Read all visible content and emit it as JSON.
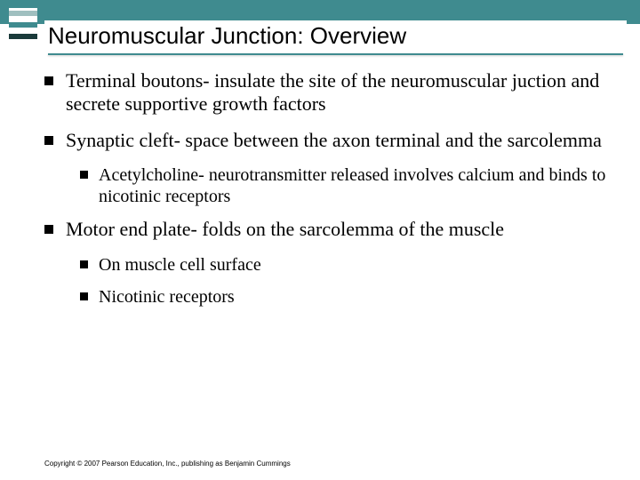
{
  "header": {
    "title": "Neuromuscular Junction: Overview",
    "band_color": "#3f8b8f",
    "logo_colors": [
      "#9fbfbf",
      "#3f8b8f",
      "#1a3a3a"
    ]
  },
  "bullets": {
    "b1": "Terminal boutons- insulate the site of the neuromuscular juction  and secrete supportive growth factors",
    "b2": "Synaptic cleft- space between the axon terminal and the sarcolemma",
    "b2a": "Acetylcholine- neurotransmitter released involves calcium and binds to nicotinic receptors",
    "b3": "Motor end plate- folds on the sarcolemma of the muscle",
    "b3a": "On muscle cell surface",
    "b3b": "Nicotinic receptors"
  },
  "footer": {
    "copyright": "Copyright © 2007 Pearson Education, Inc., publishing as Benjamin Cummings"
  },
  "styling": {
    "background_color": "#ffffff",
    "title_fontsize": 26,
    "body_fontsize_l1": 22,
    "body_fontsize_l2": 20,
    "bullet_marker": "square",
    "bullet_color": "#000000",
    "body_font": "Times New Roman",
    "title_font": "Arial"
  }
}
